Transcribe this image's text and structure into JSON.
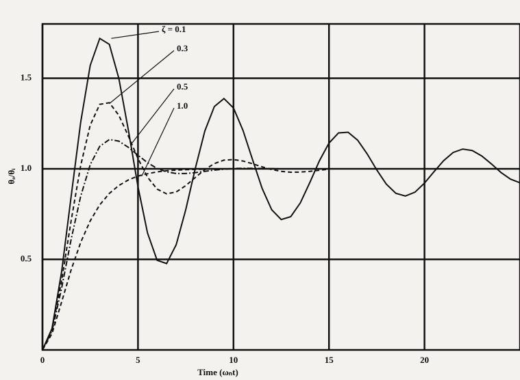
{
  "chart_data": {
    "type": "line",
    "x_label": "Time (ωₙt)",
    "y_label": "θₒ/θᵢ",
    "x": [
      0,
      0.5,
      1,
      1.5,
      2,
      2.5,
      3,
      3.5,
      4,
      4.5,
      5,
      5.5,
      6,
      6.5,
      7,
      7.5,
      8,
      8.5,
      9,
      9.5,
      10,
      10.5,
      11,
      11.5,
      12,
      12.5,
      13,
      13.5,
      14,
      14.5,
      15,
      15.5,
      16,
      16.5,
      17,
      17.5,
      18,
      18.5,
      19,
      19.5,
      20,
      20.5,
      21,
      21.5,
      22,
      22.5,
      23,
      23.5,
      24,
      24.5,
      25
    ],
    "series": [
      {
        "name": "ζ = 0.1",
        "color": "#111111",
        "line_style": "solid",
        "values": [
          0,
          0.118,
          0.431,
          0.846,
          1.258,
          1.571,
          1.72,
          1.687,
          1.499,
          1.211,
          0.901,
          0.646,
          0.495,
          0.477,
          0.581,
          0.774,
          1.001,
          1.209,
          1.344,
          1.388,
          1.336,
          1.212,
          1.05,
          0.892,
          0.774,
          0.72,
          0.736,
          0.812,
          0.925,
          1.045,
          1.142,
          1.198,
          1.202,
          1.158,
          1.082,
          0.994,
          0.916,
          0.865,
          0.85,
          0.871,
          0.921,
          0.984,
          1.045,
          1.09,
          1.109,
          1.101,
          1.071,
          1.027,
          0.98,
          0.943,
          0.923
        ]
      },
      {
        "name": "0.3",
        "color": "#111111",
        "line_style": "dashed",
        "values": [
          0,
          0.111,
          0.381,
          0.713,
          1.019,
          1.241,
          1.356,
          1.365,
          1.295,
          1.18,
          1.057,
          0.954,
          0.888,
          0.862,
          0.872,
          0.907,
          0.952,
          0.996,
          1.029,
          1.048,
          1.051,
          1.043,
          1.028,
          1.011,
          0.996,
          0.986,
          0.981,
          0.982,
          0.986,
          0.992,
          0.998,
          null,
          null,
          null,
          null,
          null,
          null,
          null,
          null,
          null,
          null,
          null,
          null,
          null,
          null,
          null,
          null,
          null,
          null,
          null,
          null
        ]
      },
      {
        "name": "0.5",
        "color": "#111111",
        "line_style": "dashdot",
        "values": [
          0,
          0.104,
          0.34,
          0.61,
          0.849,
          1.023,
          1.124,
          1.162,
          1.153,
          1.118,
          1.075,
          1.034,
          1.002,
          0.983,
          0.974,
          0.974,
          0.979,
          0.986,
          0.993,
          0.998,
          1.002,
          1.003,
          1.003,
          1.002,
          1.001,
          1,
          1,
          1,
          1,
          1,
          1,
          null,
          null,
          null,
          null,
          null,
          null,
          null,
          null,
          null,
          null,
          null,
          null,
          null,
          null,
          null,
          null,
          null,
          null,
          null,
          null
        ]
      },
      {
        "name": "1.0",
        "color": "#111111",
        "line_style": "dashed",
        "values": [
          0,
          0.09,
          0.264,
          0.442,
          0.594,
          0.713,
          0.801,
          0.864,
          0.908,
          0.939,
          0.96,
          0.973,
          0.983,
          0.989,
          0.993,
          0.995,
          0.997,
          0.998,
          0.999,
          0.999,
          1,
          1,
          1,
          1,
          1,
          1,
          1,
          1,
          1,
          1,
          1,
          null,
          null,
          null,
          null,
          null,
          null,
          null,
          null,
          null,
          null,
          null,
          null,
          null,
          null,
          null,
          null,
          null,
          null,
          null,
          null
        ]
      }
    ],
    "xlim": [
      0,
      25
    ],
    "ylim": [
      0,
      1.8
    ],
    "xticks": [
      0,
      5,
      10,
      15,
      20
    ],
    "yticks": [
      0.5,
      {
        "value": 1,
        "label": "1.0"
      },
      1.5
    ],
    "grid": true
  }
}
